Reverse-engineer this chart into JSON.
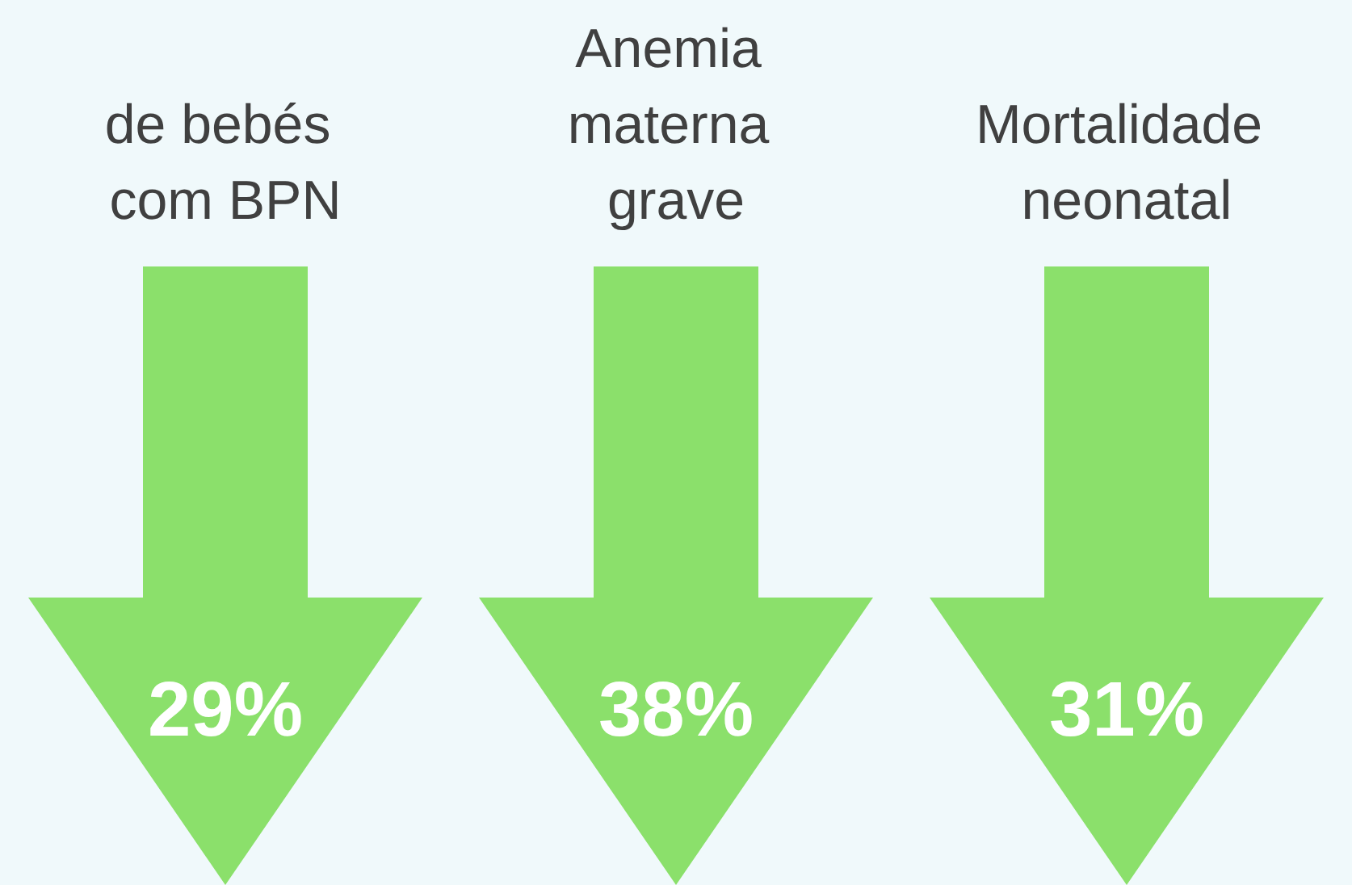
{
  "chart_data": {
    "type": "other",
    "categories": [
      "de bebés com BPN",
      "Anemia materna grave",
      "Mortalidade neonatal"
    ],
    "values": [
      29,
      38,
      31
    ],
    "value_labels": [
      "29%",
      "38%",
      "31%"
    ],
    "color": "#8be06b"
  }
}
